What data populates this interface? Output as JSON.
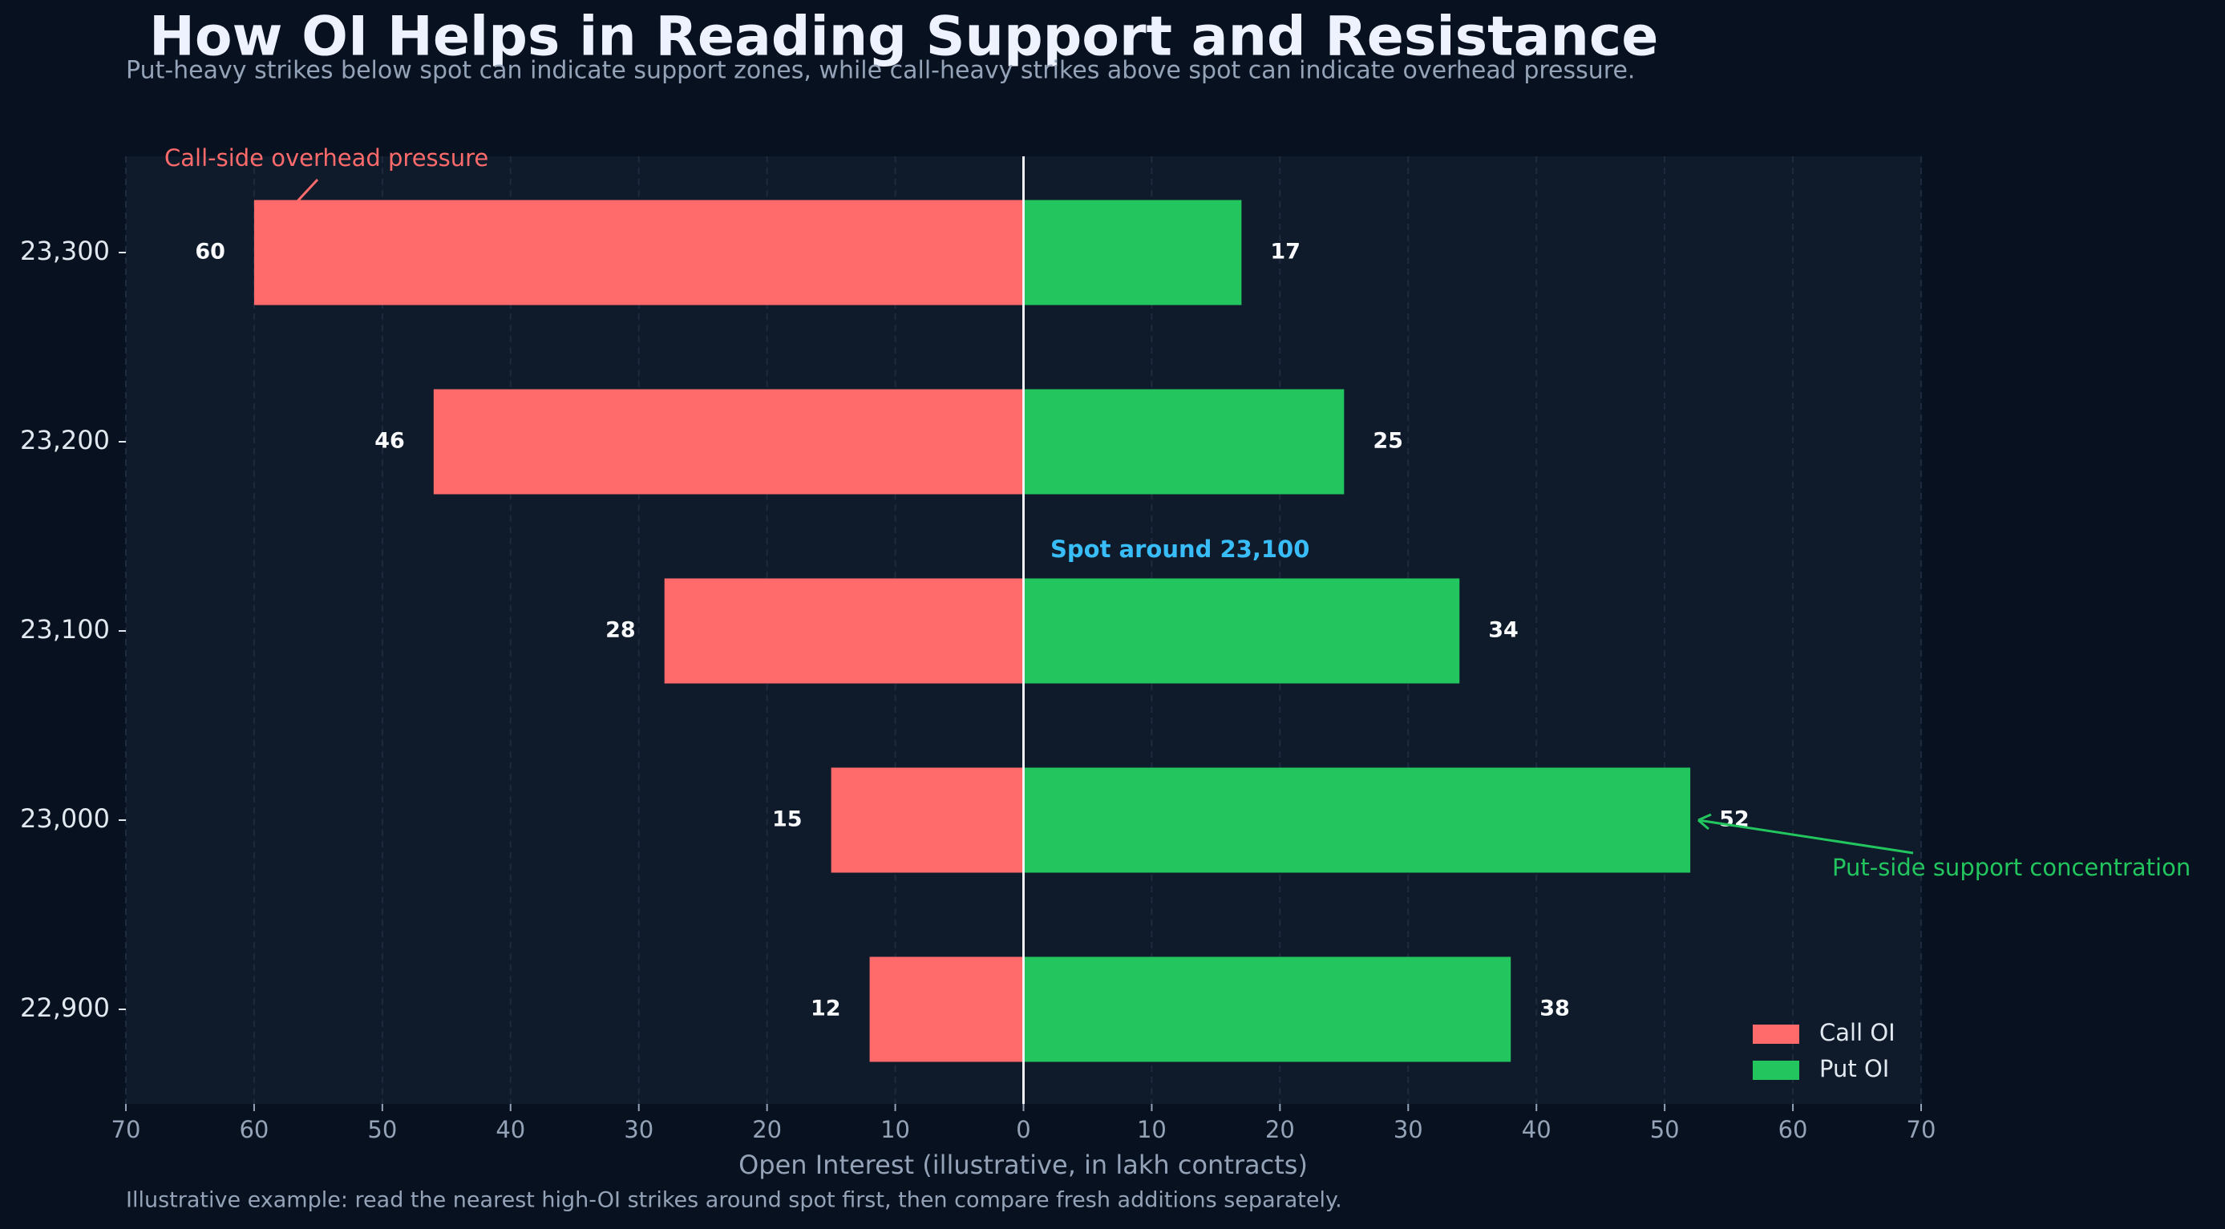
{
  "chart_data": {
    "type": "butterfly-bar",
    "title": "How OI Helps in Reading Support and Resistance",
    "subtitle": "Put-heavy strikes below spot can indicate support zones, while call-heavy strikes above spot can indicate overhead pressure.",
    "x_label": "Open Interest (illustrative, in lakh contracts)",
    "footnote": "Illustrative example: read the nearest high-OI strikes around spot first, then compare fresh additions separately.",
    "categories": [
      "23,300",
      "23,200",
      "23,100",
      "23,000",
      "22,900"
    ],
    "series": [
      {
        "name": "Call OI",
        "color": "#ff6b6b",
        "values": [
          60,
          46,
          28,
          15,
          12
        ]
      },
      {
        "name": "Put OI",
        "color": "#22c55e",
        "values": [
          17,
          25,
          34,
          52,
          38
        ]
      }
    ],
    "xlim": [
      -70,
      70
    ],
    "xticks": [
      {
        "value": -70,
        "label": "70"
      },
      {
        "value": -60,
        "label": "60"
      },
      {
        "value": -50,
        "label": "50"
      },
      {
        "value": -40,
        "label": "40"
      },
      {
        "value": -30,
        "label": "30"
      },
      {
        "value": -20,
        "label": "20"
      },
      {
        "value": -10,
        "label": "10"
      },
      0,
      10,
      20,
      30,
      40,
      50,
      60,
      70
    ],
    "grid": true,
    "legend": "lower right",
    "annotations": [
      {
        "text": "Call-side overhead pressure",
        "color": "#ff6b6b"
      },
      {
        "text": "Spot around 23,100",
        "color": "#38bdf8"
      },
      {
        "text": "Put-side support concentration",
        "color": "#22c55e"
      }
    ]
  }
}
